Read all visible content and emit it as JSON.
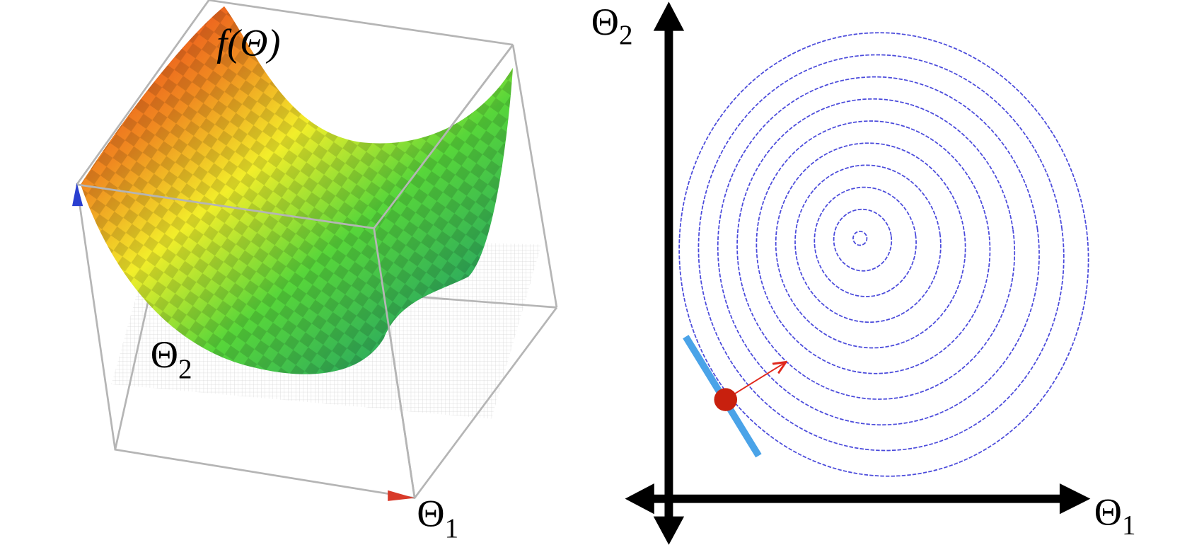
{
  "left_plot": {
    "surface_label": "f(Θ)",
    "axis_2": {
      "symbol": "Θ",
      "subscript": "2"
    },
    "axis_1": {
      "symbol": "Θ",
      "subscript": "1"
    }
  },
  "right_plot": {
    "axis_2": {
      "symbol": "Θ",
      "subscript": "2"
    },
    "axis_1": {
      "symbol": "Θ",
      "subscript": "1"
    }
  }
}
